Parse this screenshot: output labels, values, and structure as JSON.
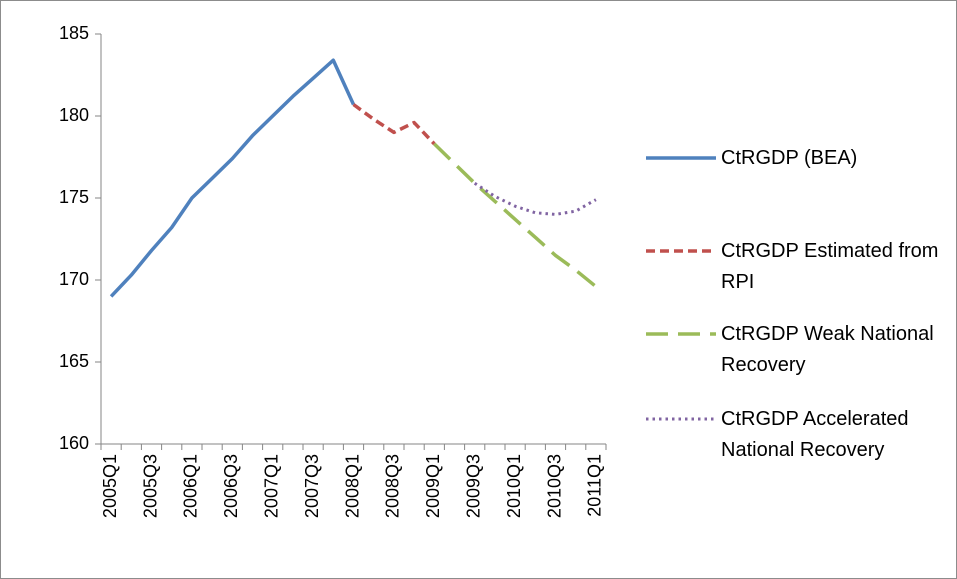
{
  "chart_data": {
    "type": "line",
    "categories": [
      "2005Q1",
      null,
      "2005Q3",
      null,
      "2006Q1",
      null,
      "2006Q3",
      null,
      "2007Q1",
      null,
      "2007Q3",
      null,
      "2008Q1",
      null,
      "2008Q3",
      null,
      "2009Q1",
      null,
      "2009Q3",
      null,
      "2010Q1",
      null,
      "2010Q3",
      null,
      "2011Q1"
    ],
    "series": [
      {
        "name": "CtRGDP (BEA)",
        "color": "#4f81bd",
        "dash": "solid",
        "values": [
          169.0,
          170.3,
          171.8,
          173.2,
          175.0,
          176.2,
          177.4,
          178.8,
          180.0,
          181.2,
          182.3,
          183.4,
          180.7,
          null,
          null,
          null,
          null,
          null,
          null,
          null,
          null,
          null,
          null,
          null,
          null
        ]
      },
      {
        "name": "CtRGDP Estimated from RPI",
        "color": "#c0504d",
        "dash": "dashed",
        "values": [
          null,
          null,
          null,
          null,
          null,
          null,
          null,
          null,
          null,
          null,
          null,
          null,
          180.7,
          179.8,
          179.0,
          179.6,
          178.3,
          null,
          null,
          null,
          null,
          null,
          null,
          null,
          null
        ]
      },
      {
        "name": "CtRGDP Weak National Recovery",
        "color": "#9bbb59",
        "dash": "long-dashed",
        "values": [
          null,
          null,
          null,
          null,
          null,
          null,
          null,
          null,
          null,
          null,
          null,
          null,
          null,
          null,
          null,
          null,
          178.3,
          177.1,
          175.9,
          174.8,
          173.7,
          172.6,
          171.5,
          170.6,
          169.6
        ]
      },
      {
        "name": "CtRGDP Accelerated National Recovery",
        "color": "#8064a2",
        "dash": "dotted",
        "values": [
          null,
          null,
          null,
          null,
          null,
          null,
          null,
          null,
          null,
          null,
          null,
          null,
          null,
          null,
          null,
          null,
          null,
          null,
          175.9,
          175.1,
          174.5,
          174.1,
          174.0,
          174.2,
          174.9
        ]
      }
    ],
    "ylim": [
      160,
      185
    ],
    "yticks": [
      160,
      165,
      170,
      175,
      180,
      185
    ],
    "grid": false,
    "legend": "right"
  }
}
